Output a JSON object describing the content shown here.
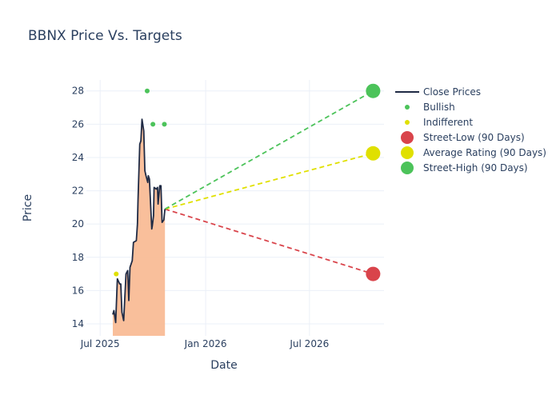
{
  "chart_data": {
    "type": "line",
    "title": "BBNX Price Vs. Targets",
    "xlabel": "Date",
    "ylabel": "Price",
    "xlim": [
      "2025-06-07",
      "2026-11-08"
    ],
    "ylim": [
      13.28,
      28.66
    ],
    "x_ticks": [
      {
        "date": "2025-07-01",
        "label": "Jul 2025"
      },
      {
        "date": "2026-01-01",
        "label": "Jan 2026"
      },
      {
        "date": "2026-07-01",
        "label": "Jul 2026"
      }
    ],
    "y_ticks": [
      14,
      16,
      18,
      20,
      22,
      24,
      26,
      28
    ],
    "grid": true,
    "legend_position": "right",
    "colors": {
      "close": "#1f2a44",
      "fill": "#f9bc96",
      "bullish": "#4cc35a",
      "indifferent": "#e0e000",
      "low": "#d9444b",
      "high": "#4cc35a",
      "text": "#2a3f5f",
      "grid": "#ebf0f8"
    },
    "close_prices": {
      "name": "Close Prices",
      "x": [
        "2025-07-23",
        "2025-07-25",
        "2025-07-28",
        "2025-07-31",
        "2025-08-04",
        "2025-08-06",
        "2025-08-08",
        "2025-08-11",
        "2025-08-15",
        "2025-08-18",
        "2025-08-20",
        "2025-08-22",
        "2025-08-26",
        "2025-08-28",
        "2025-09-02",
        "2025-09-04",
        "2025-09-05",
        "2025-09-08",
        "2025-09-10",
        "2025-09-12",
        "2025-09-15",
        "2025-09-17",
        "2025-09-19",
        "2025-09-22",
        "2025-09-23",
        "2025-09-25",
        "2025-09-29",
        "2025-09-30",
        "2025-10-02",
        "2025-10-03",
        "2025-10-07",
        "2025-10-09",
        "2025-10-10",
        "2025-10-13",
        "2025-10-15",
        "2025-10-17",
        "2025-10-20",
        "2025-10-22"
      ],
      "y": [
        14.56,
        14.8,
        14.08,
        16.7,
        16.4,
        16.4,
        14.7,
        14.2,
        17.0,
        17.2,
        15.4,
        17.4,
        17.8,
        18.9,
        19.0,
        20.0,
        21.4,
        24.8,
        25.0,
        26.3,
        25.6,
        23.2,
        22.9,
        22.5,
        22.9,
        22.7,
        19.7,
        19.9,
        20.5,
        22.2,
        22.1,
        22.2,
        21.2,
        22.3,
        22.3,
        20.1,
        20.25,
        20.9
      ]
    },
    "bullish": {
      "name": "Bullish",
      "x": [
        "2025-09-21",
        "2025-10-01",
        "2025-10-21"
      ],
      "y": [
        28,
        26,
        26
      ]
    },
    "indifferent": {
      "name": "Indifferent",
      "x": [
        "2025-07-29"
      ],
      "y": [
        17
      ]
    },
    "targets": [
      {
        "name": "Street-Low (90 Days)",
        "x": "2026-10-20",
        "y": 17,
        "color_key": "low"
      },
      {
        "name": "Average Rating (90 Days)",
        "x": "2026-10-20",
        "y": 24.25,
        "color_key": "indifferent"
      },
      {
        "name": "Street-High (90 Days)",
        "x": "2026-10-20",
        "y": 28,
        "color_key": "high"
      }
    ]
  }
}
